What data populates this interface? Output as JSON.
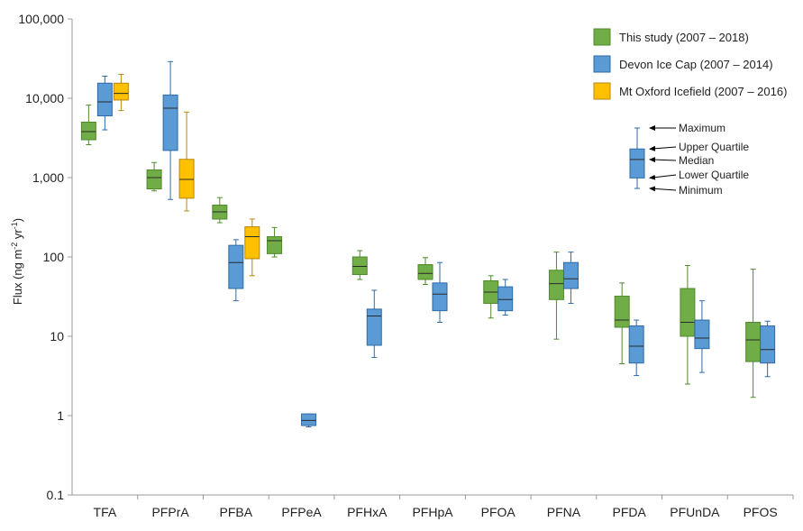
{
  "chart_data": {
    "type": "boxplot",
    "yscale": "log",
    "ylabel_prefix": "Flux (ng m",
    "ylabel_exp1": "-2",
    "ylabel_mid": " yr",
    "ylabel_exp2": "-1",
    "ylabel_suffix": ")",
    "ylim": [
      0.1,
      100000
    ],
    "yticks": [
      {
        "value": 0.1,
        "label": "0.1"
      },
      {
        "value": 1,
        "label": "1"
      },
      {
        "value": 10,
        "label": "10"
      },
      {
        "value": 100,
        "label": "100"
      },
      {
        "value": 1000,
        "label": "1,000"
      },
      {
        "value": 10000,
        "label": "10,000"
      },
      {
        "value": 100000,
        "label": "100,000"
      }
    ],
    "categories": [
      "TFA",
      "PFPrA",
      "PFBA",
      "PFPeA",
      "PFHxA",
      "PFHpA",
      "PFOA",
      "PFNA",
      "PFDA",
      "PFUnDA",
      "PFOS"
    ],
    "series": [
      {
        "name": "This study (2007 – 2018)",
        "color": "#70ad47",
        "edge": "#4e8a2a",
        "boxes": [
          {
            "category": "TFA",
            "min": 2600,
            "q1": 3000,
            "median": 3800,
            "q3": 5000,
            "max": 8200
          },
          {
            "category": "PFPrA",
            "min": 680,
            "q1": 720,
            "median": 1000,
            "q3": 1250,
            "max": 1550
          },
          {
            "category": "PFBA",
            "min": 270,
            "q1": 300,
            "median": 370,
            "q3": 450,
            "max": 560
          },
          {
            "category": "PFPeA",
            "min": 100,
            "q1": 110,
            "median": 160,
            "q3": 180,
            "max": 235
          },
          {
            "category": "PFHxA",
            "min": 52,
            "q1": 60,
            "median": 76,
            "q3": 100,
            "max": 120
          },
          {
            "category": "PFHpA",
            "min": 45,
            "q1": 52,
            "median": 62,
            "q3": 80,
            "max": 98
          },
          {
            "category": "PFOA",
            "min": 17,
            "q1": 26,
            "median": 36,
            "q3": 50,
            "max": 58
          },
          {
            "category": "PFNA",
            "min": 9.2,
            "q1": 29,
            "median": 46,
            "q3": 68,
            "max": 115
          },
          {
            "category": "PFDA",
            "min": 4.5,
            "q1": 13,
            "median": 16,
            "q3": 32,
            "max": 47
          },
          {
            "category": "PFUnDA",
            "min": 2.5,
            "q1": 10,
            "median": 15,
            "q3": 40,
            "max": 78
          },
          {
            "category": "PFOS",
            "min": 1.7,
            "q1": 4.8,
            "median": 9,
            "q3": 15,
            "max": 70
          }
        ]
      },
      {
        "name": "Devon Ice Cap (2007 – 2014)",
        "color": "#5b9bd5",
        "edge": "#2e6aa6",
        "boxes": [
          {
            "category": "TFA",
            "min": 4000,
            "q1": 6000,
            "median": 9000,
            "q3": 15500,
            "max": 19000
          },
          {
            "category": "PFPrA",
            "min": 530,
            "q1": 2200,
            "median": 7500,
            "q3": 11000,
            "max": 29000
          },
          {
            "category": "PFBA",
            "min": 28,
            "q1": 40,
            "median": 85,
            "q3": 140,
            "max": 165
          },
          {
            "category": "PFPeA",
            "min": 0.72,
            "q1": 0.75,
            "median": 0.87,
            "q3": 1.05,
            "max": 1.05
          },
          {
            "category": "PFHxA",
            "min": 5.4,
            "q1": 7.7,
            "median": 18,
            "q3": 22,
            "max": 38
          },
          {
            "category": "PFHpA",
            "min": 15,
            "q1": 21,
            "median": 34,
            "q3": 47,
            "max": 85
          },
          {
            "category": "PFOA",
            "min": 18.5,
            "q1": 21,
            "median": 29,
            "q3": 42,
            "max": 52
          },
          {
            "category": "PFNA",
            "min": 26,
            "q1": 40,
            "median": 53,
            "q3": 85,
            "max": 115
          },
          {
            "category": "PFDA",
            "min": 3.2,
            "q1": 4.6,
            "median": 7.5,
            "q3": 13.5,
            "max": 16
          },
          {
            "category": "PFUnDA",
            "min": 3.5,
            "q1": 7,
            "median": 9.5,
            "q3": 16,
            "max": 28
          },
          {
            "category": "PFOS",
            "min": 3.1,
            "q1": 4.6,
            "median": 6.8,
            "q3": 13.5,
            "max": 15.5
          }
        ]
      },
      {
        "name": "Mt Oxford Icefield (2007 – 2016)",
        "color": "#ffc000",
        "edge": "#b8860b",
        "boxes": [
          {
            "category": "TFA",
            "min": 7000,
            "q1": 9500,
            "median": 11500,
            "q3": 15500,
            "max": 20000
          },
          {
            "category": "PFPrA",
            "min": 380,
            "q1": 550,
            "median": 950,
            "q3": 1700,
            "max": 6700
          },
          {
            "category": "PFBA",
            "min": 58,
            "q1": 95,
            "median": 180,
            "q3": 240,
            "max": 300
          }
        ]
      }
    ],
    "legend": {
      "position": "top-right"
    },
    "key": {
      "example": {
        "min": 740,
        "q1": 1000,
        "median": 1700,
        "q3": 2300,
        "max": 4200
      },
      "labels": {
        "max": "Maximum",
        "q3": "Upper Quartile",
        "median": "Median",
        "q1": "Lower Quartile",
        "min": "Minimum"
      }
    }
  }
}
